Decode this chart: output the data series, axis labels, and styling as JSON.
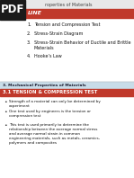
{
  "bg_color": "#ffffff",
  "top_bar_color": "#c0392b",
  "top_header_bg": "#e8e8e8",
  "header_text": "roperties of Materials",
  "outline_label": "LINE",
  "outline_items": [
    "Tension and Compression Test",
    "Stress-Strain Diagram",
    "Stress-Strain Behavior of Ductile and Brittle\nMaterials",
    "Hooke’s Law"
  ],
  "outline_numbers": [
    "1.",
    "2.",
    "3.",
    "4."
  ],
  "section_header": "3. Mechanical Properties of Materials",
  "section_title": "3.1 TENSION & COMPRESSION TEST",
  "bullets": [
    "Strength of a material can only be determined by\nexperiment",
    "One test used by engineers is the tension or\ncompression test",
    "This test is used primarily to determine the\nrelationship between the average normal stress\nand average normal strain in common\nengineering materials, such as metals, ceramics,\npolymers and composites"
  ],
  "pdf_bg": "#1a1a1a",
  "pdf_text_color": "#ffffff",
  "pdf_text": "PDF",
  "divider_color": "#aaaaaa",
  "section_header_bg": "#c8dce8",
  "section_title_bg": "#c0392b",
  "section_title_color": "#ffffff",
  "section_header_color": "#1a1a2e",
  "text_color": "#111111",
  "bullet_color": "#333333"
}
